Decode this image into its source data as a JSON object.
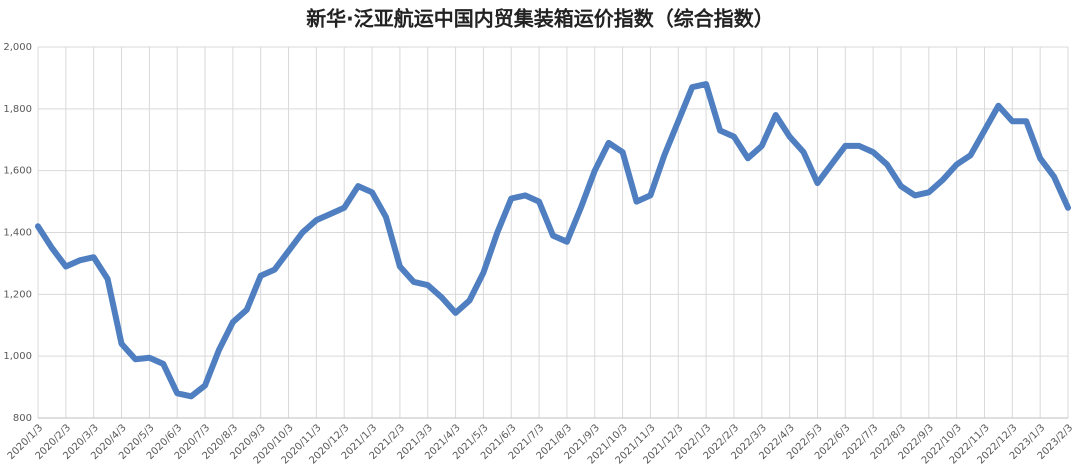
{
  "chart_data": {
    "type": "line",
    "title": "新华·泛亚航运中国内贸集装箱运价指数（综合指数）",
    "categories": [
      "2020/1/3",
      null,
      "2020/2/3",
      null,
      "2020/3/3",
      null,
      "2020/4/3",
      null,
      "2020/5/3",
      null,
      "2020/6/3",
      null,
      "2020/7/3",
      null,
      "2020/8/3",
      null,
      "2020/9/3",
      null,
      "2020/10/3",
      null,
      "2020/11/3",
      null,
      "2020/12/3",
      null,
      "2021/1/3",
      null,
      "2021/2/3",
      null,
      "2021/3/3",
      null,
      "2021/4/3",
      null,
      "2021/5/3",
      null,
      "2021/6/3",
      null,
      "2021/7/3",
      null,
      "2021/8/3",
      null,
      "2021/9/3",
      null,
      "2021/10/3",
      null,
      "2021/11/3",
      null,
      "2021/12/3",
      null,
      "2022/1/3",
      null,
      "2022/2/3",
      null,
      "2022/3/3",
      null,
      "2022/4/3",
      null,
      "2022/5/3",
      null,
      "2022/6/3",
      null,
      "2022/7/3",
      null,
      "2022/8/3",
      null,
      "2022/9/3",
      null,
      "2022/10/3",
      null,
      "2022/11/3",
      null,
      "2022/12/3",
      null,
      "2023/1/3",
      null,
      "2023/2/3"
    ],
    "series": [
      {
        "name": "综合指数",
        "color": "#4f7fc0",
        "values": [
          1420,
          1350,
          1290,
          1310,
          1320,
          1250,
          1040,
          990,
          995,
          975,
          880,
          870,
          905,
          1020,
          1110,
          1150,
          1260,
          1280,
          1340,
          1400,
          1440,
          1460,
          1480,
          1550,
          1530,
          1450,
          1290,
          1240,
          1230,
          1190,
          1140,
          1180,
          1270,
          1400,
          1510,
          1520,
          1500,
          1390,
          1370,
          1480,
          1600,
          1690,
          1660,
          1500,
          1520,
          1650,
          1760,
          1870,
          1880,
          1730,
          1710,
          1640,
          1680,
          1780,
          1710,
          1660,
          1560,
          1620,
          1680,
          1680,
          1660,
          1620,
          1550,
          1520,
          1530,
          1570,
          1620,
          1650,
          1730,
          1810,
          1760,
          1760,
          1640,
          1580,
          1480
        ]
      }
    ],
    "ylim": [
      800,
      2000
    ],
    "yticks": [
      800,
      {
        "value": 1000,
        "label": "1,000"
      },
      {
        "value": 1200,
        "label": "1,200"
      },
      {
        "value": 1400,
        "label": "1,400"
      },
      {
        "value": 1600,
        "label": "1,600"
      },
      {
        "value": 1800,
        "label": "1,800"
      },
      {
        "value": 2000,
        "label": "2,000"
      }
    ],
    "grid": true
  }
}
